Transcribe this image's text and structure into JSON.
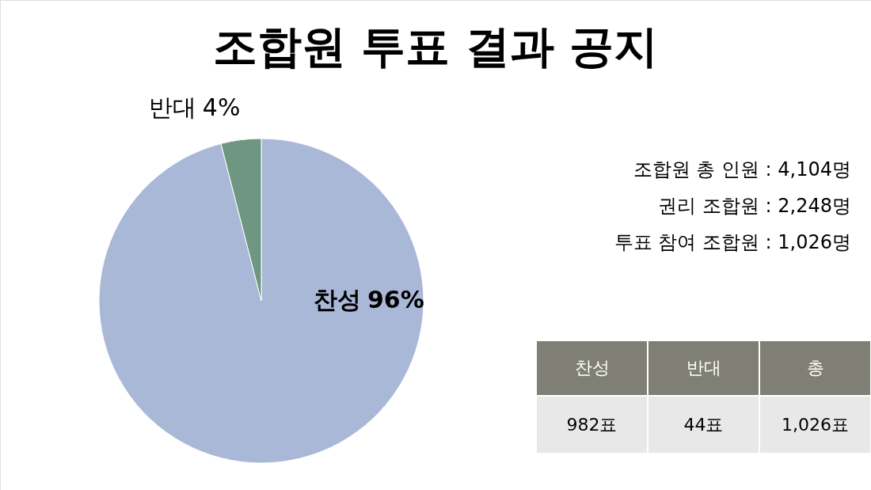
{
  "chart_data": {
    "type": "pie",
    "title": "조합원 투표 결과 공지",
    "categories": [
      "찬성",
      "반대"
    ],
    "values": [
      96,
      4
    ],
    "colors": [
      "#aab8d8",
      "#6e9680"
    ],
    "value_labels": [
      "96%",
      "4%"
    ],
    "annotations": [
      "조합원 총 인원 : 4,104명",
      "권리 조합원   : 2,248명",
      "투표 참여 조합원 : 1,026명",
      "찬성",
      "반대",
      "총",
      "982표",
      "44표",
      "1,026표"
    ]
  }
}
